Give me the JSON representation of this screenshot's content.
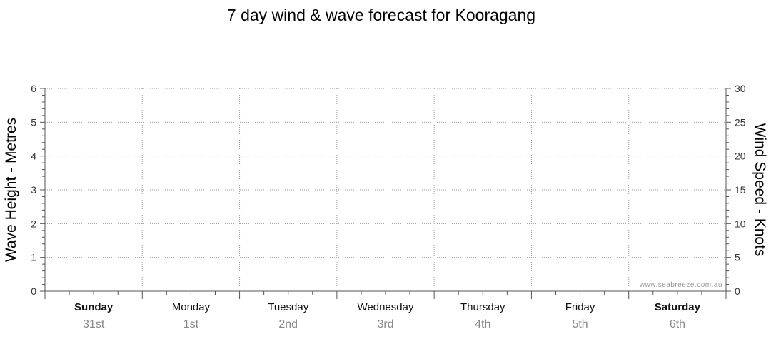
{
  "chart_data": {
    "type": "line",
    "title": "7 day wind & wave forecast for Kooragang",
    "ylabel": "Wave Height - Metres",
    "y2label": "Wind Speed - Knots",
    "ylim": [
      0,
      6
    ],
    "y2lim": [
      0,
      30
    ],
    "yticks": [
      "0",
      "1",
      "2",
      "3",
      "4",
      "5",
      "6"
    ],
    "y2ticks": [
      "0",
      "5",
      "10",
      "15",
      "20",
      "25",
      "30"
    ],
    "grid": true,
    "days": [
      {
        "name": "Sunday",
        "date": "31st",
        "bold": true
      },
      {
        "name": "Monday",
        "date": "1st",
        "bold": false
      },
      {
        "name": "Tuesday",
        "date": "2nd",
        "bold": false
      },
      {
        "name": "Wednesday",
        "date": "3rd",
        "bold": false
      },
      {
        "name": "Thursday",
        "date": "4th",
        "bold": false
      },
      {
        "name": "Friday",
        "date": "5th",
        "bold": false
      },
      {
        "name": "Saturday",
        "date": "6th",
        "bold": true
      }
    ],
    "series": [],
    "watermark": "www.seabreeze.com.au"
  }
}
